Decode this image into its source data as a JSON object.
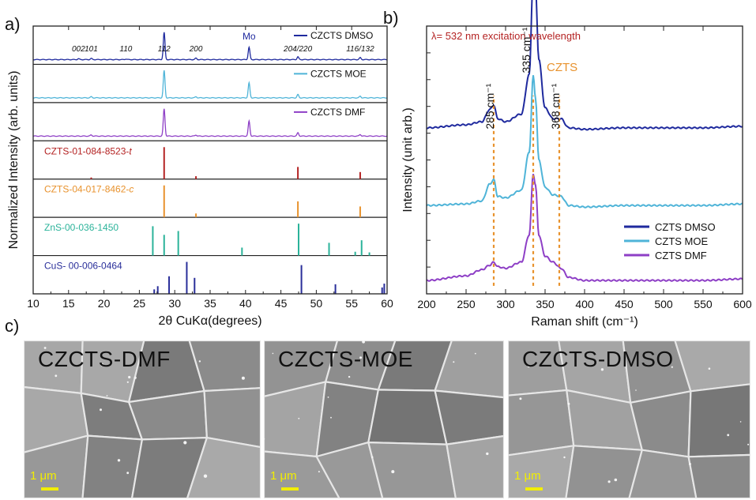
{
  "panel_labels": {
    "a": "a)",
    "b": "b)",
    "c": "c)"
  },
  "chart_data": [
    {
      "type": "line",
      "subtype": "stacked-xrd-with-reference-sticks",
      "xlabel": "2θ CuKα(degrees)",
      "ylabel": "Normalized Intensity (arb. units)",
      "xlim": [
        10,
        60
      ],
      "xticks": [
        10,
        15,
        20,
        25,
        30,
        35,
        40,
        45,
        50,
        55,
        60
      ],
      "peak_labels": [
        {
          "text": "002",
          "x": 16.4
        },
        {
          "text": "101",
          "x": 18.2
        },
        {
          "text": "110",
          "x": 23.1
        },
        {
          "text": "112",
          "x": 28.5
        },
        {
          "text": "200",
          "x": 33.0
        },
        {
          "text": "Mo",
          "x": 40.5
        },
        {
          "text": "204/220",
          "x": 47.4
        },
        {
          "text": "116/132",
          "x": 56.2
        }
      ],
      "series": [
        {
          "name": "CZCTS DMSO",
          "color": "#1f2a9e",
          "peaks": [
            [
              16.4,
              0.03
            ],
            [
              18.2,
              0.04
            ],
            [
              23.1,
              0.02
            ],
            [
              28.5,
              1.0
            ],
            [
              33.0,
              0.05
            ],
            [
              40.5,
              0.45
            ],
            [
              47.4,
              0.1
            ],
            [
              56.2,
              0.07
            ]
          ]
        },
        {
          "name": "CZCTS MOE",
          "color": "#4fb4d8",
          "peaks": [
            [
              18.2,
              0.04
            ],
            [
              28.5,
              1.0
            ],
            [
              33.0,
              0.04
            ],
            [
              40.5,
              0.55
            ],
            [
              47.4,
              0.12
            ],
            [
              56.2,
              0.06
            ]
          ]
        },
        {
          "name": "CZCTS DMF",
          "color": "#8e3fc6",
          "peaks": [
            [
              18.2,
              0.04
            ],
            [
              28.5,
              1.0
            ],
            [
              33.0,
              0.04
            ],
            [
              40.5,
              0.55
            ],
            [
              47.4,
              0.12
            ],
            [
              56.2,
              0.06
            ]
          ]
        }
      ],
      "references": [
        {
          "name": "CZTS-01-084-8523-",
          "suffix": "t",
          "color": "#b42323",
          "sticks": [
            [
              18.2,
              0.05
            ],
            [
              28.5,
              1.0
            ],
            [
              33.0,
              0.09
            ],
            [
              47.4,
              0.38
            ],
            [
              56.2,
              0.22
            ]
          ]
        },
        {
          "name": "CZTS-04-017-8462-",
          "suffix": "c",
          "color": "#e8922d",
          "sticks": [
            [
              28.5,
              1.0
            ],
            [
              33.0,
              0.12
            ],
            [
              47.4,
              0.5
            ],
            [
              56.2,
              0.34
            ]
          ]
        },
        {
          "name": "ZnS-00-036-1450",
          "color": "#2bb39a",
          "sticks": [
            [
              26.9,
              0.92
            ],
            [
              28.5,
              0.65
            ],
            [
              30.5,
              0.77
            ],
            [
              39.5,
              0.25
            ],
            [
              47.5,
              1.0
            ],
            [
              51.8,
              0.4
            ],
            [
              55.5,
              0.12
            ],
            [
              56.4,
              0.48
            ],
            [
              57.5,
              0.1
            ]
          ]
        },
        {
          "name": "CuS- 00-006-0464",
          "color": "#2a2f9a",
          "sticks": [
            [
              27.1,
              0.14
            ],
            [
              27.6,
              0.24
            ],
            [
              29.2,
              0.55
            ],
            [
              31.7,
              1.0
            ],
            [
              32.8,
              0.5
            ],
            [
              47.9,
              0.9
            ],
            [
              52.7,
              0.3
            ],
            [
              59.3,
              0.2
            ],
            [
              59.6,
              0.32
            ]
          ]
        }
      ]
    },
    {
      "type": "line",
      "subtype": "stacked-raman",
      "title": "λ= 532 nm excitation wavelength",
      "xlabel": "Raman shift (cm⁻¹)",
      "ylabel": "Intensity (unit arb.)",
      "xlim": [
        200,
        600
      ],
      "xticks": [
        200,
        250,
        300,
        350,
        400,
        450,
        500,
        550,
        600
      ],
      "legend": "bottom-right",
      "grid": false,
      "annotations": [
        {
          "text": "CZTS",
          "color": "#e8922d"
        },
        {
          "text": "285 cm⁻¹",
          "x": 285
        },
        {
          "text": "335 cm⁻¹",
          "x": 335
        },
        {
          "text": "368 cm⁻¹",
          "x": 368
        }
      ],
      "reference_lines": [
        285,
        335,
        368
      ],
      "series": [
        {
          "name": "CZTS DMSO",
          "color": "#1f2a9e",
          "baseline": 0.62,
          "x": [
            200,
            250,
            270,
            280,
            285,
            290,
            300,
            320,
            330,
            335,
            338,
            342,
            350,
            360,
            370,
            380,
            400,
            450,
            500,
            550,
            600
          ],
          "y": [
            0.0,
            0.02,
            0.04,
            0.12,
            0.15,
            0.06,
            0.04,
            0.09,
            0.35,
            1.0,
            0.9,
            0.45,
            0.13,
            0.06,
            0.06,
            0.0,
            -0.01,
            0.0,
            0.0,
            0.0,
            0.01
          ]
        },
        {
          "name": "CZTS MOE",
          "color": "#4fb4d8",
          "baseline": 0.33,
          "x": [
            200,
            250,
            270,
            280,
            285,
            290,
            300,
            320,
            330,
            335,
            338,
            342,
            350,
            360,
            370,
            380,
            400,
            450,
            500,
            550,
            600
          ],
          "y": [
            0.0,
            0.01,
            0.03,
            0.14,
            0.17,
            0.06,
            0.05,
            0.1,
            0.35,
            0.85,
            0.7,
            0.3,
            0.12,
            0.07,
            0.06,
            0.0,
            -0.01,
            0.0,
            0.0,
            0.0,
            0.01
          ]
        },
        {
          "name": "CZTS DMF",
          "color": "#8e3fc6",
          "baseline": 0.05,
          "x": [
            200,
            250,
            270,
            280,
            285,
            290,
            300,
            320,
            330,
            335,
            338,
            342,
            350,
            360,
            370,
            380,
            400,
            450,
            500,
            550,
            600
          ],
          "y": [
            0.0,
            0.03,
            0.07,
            0.1,
            0.12,
            0.09,
            0.08,
            0.12,
            0.3,
            0.7,
            0.62,
            0.3,
            0.16,
            0.12,
            0.08,
            0.02,
            0.0,
            0.0,
            0.0,
            0.0,
            0.01
          ]
        }
      ]
    }
  ],
  "sem_images": [
    {
      "label": "CZCTS-DMF",
      "scale": "1 μm"
    },
    {
      "label": "CZCTS-MOE",
      "scale": "1 μm"
    },
    {
      "label": "CZCTS-DMSO",
      "scale": "1 μm"
    }
  ]
}
